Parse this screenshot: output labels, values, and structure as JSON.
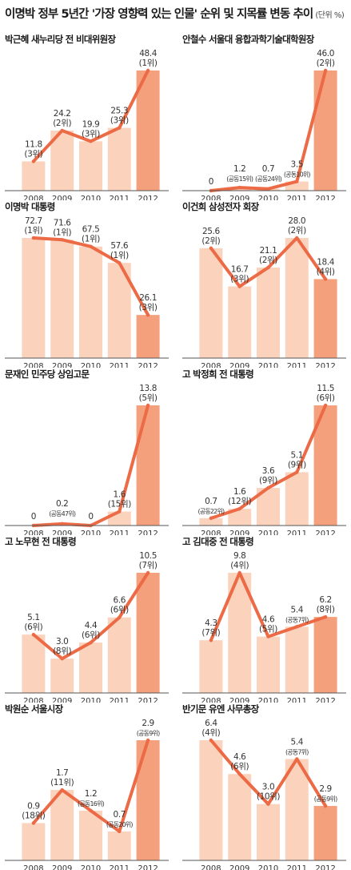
{
  "title": "이명박 정부 5년간 '가장 영향력 있는 인물' 순위 및 지목률 변동 추이",
  "unit": "(단위 %)",
  "colors": {
    "bar": "#fbd3bd",
    "bar_last": "#f4a07d",
    "line": "#ec6a45",
    "text": "#333333",
    "axis": "#555555"
  },
  "chart_data": [
    {
      "type": "bar",
      "title": "박근혜 새누리당 전 비대위원장",
      "categories": [
        "2008",
        "2009",
        "2010",
        "2011",
        "2012"
      ],
      "values": [
        11.8,
        24.2,
        19.9,
        25.3,
        48.4
      ],
      "labels": [
        "11.8",
        "24.2",
        "19.9",
        "25.3",
        "48.4"
      ],
      "ranks": [
        "(3위)",
        "(2위)",
        "(3위)",
        "(3위)",
        "(1위)"
      ]
    },
    {
      "type": "bar",
      "title": "안철수 서울대 융합과학기술대학원장",
      "categories": [
        "2008",
        "2009",
        "2010",
        "2011",
        "2012"
      ],
      "values": [
        0,
        1.2,
        0.7,
        3.5,
        46.0
      ],
      "labels": [
        "0",
        "1.2",
        "0.7",
        "3.5",
        "46.0"
      ],
      "ranks": [
        "",
        "(공동15위)",
        "(공동24위)",
        "(공동10위)",
        "(2위)"
      ]
    },
    {
      "type": "bar",
      "title": "이명박 대통령",
      "categories": [
        "2008",
        "2009",
        "2010",
        "2011",
        "2012"
      ],
      "values": [
        72.7,
        71.6,
        67.5,
        57.6,
        26.1
      ],
      "labels": [
        "72.7",
        "71.6",
        "67.5",
        "57.6",
        "26.1"
      ],
      "ranks": [
        "(1위)",
        "(1위)",
        "(1위)",
        "(1위)",
        "(3위)"
      ]
    },
    {
      "type": "bar",
      "title": "이건희 삼성전자 회장",
      "categories": [
        "2008",
        "2009",
        "2010",
        "2011",
        "2012"
      ],
      "values": [
        25.6,
        16.7,
        21.1,
        28.0,
        18.4
      ],
      "labels": [
        "25.6",
        "16.7",
        "21.1",
        "28.0",
        "18.4"
      ],
      "ranks": [
        "(2위)",
        "(3위)",
        "(2위)",
        "(2위)",
        "(4위)"
      ]
    },
    {
      "type": "bar",
      "title": "문재인 민주당 상임고문",
      "categories": [
        "2008",
        "2009",
        "2010",
        "2011",
        "2012"
      ],
      "values": [
        0,
        0.2,
        0,
        1.6,
        13.8
      ],
      "labels": [
        "0",
        "0.2",
        "0",
        "1.6",
        "13.8"
      ],
      "ranks": [
        "",
        "(공동47위)",
        "",
        "(15위)",
        "(5위)"
      ]
    },
    {
      "type": "bar",
      "title": "고 박정희 전 대통령",
      "categories": [
        "2008",
        "2009",
        "2010",
        "2011",
        "2012"
      ],
      "values": [
        0.7,
        1.6,
        3.6,
        5.1,
        11.5
      ],
      "labels": [
        "0.7",
        "1.6",
        "3.6",
        "5.1",
        "11.5"
      ],
      "ranks": [
        "(공동22위)",
        "(12위)",
        "(9위)",
        "(9위)",
        "(6위)"
      ]
    },
    {
      "type": "bar",
      "title": "고 노무현 전 대통령",
      "categories": [
        "2008",
        "2009",
        "2010",
        "2011",
        "2012"
      ],
      "values": [
        5.1,
        3.0,
        4.4,
        6.6,
        10.5
      ],
      "labels": [
        "5.1",
        "3.0",
        "4.4",
        "6.6",
        "10.5"
      ],
      "ranks": [
        "(6위)",
        "(8위)",
        "(6위)",
        "(6위)",
        "(7위)"
      ]
    },
    {
      "type": "bar",
      "title": "고 김대중 전 대통령",
      "categories": [
        "2008",
        "2009",
        "2010",
        "2011",
        "2012"
      ],
      "values": [
        4.3,
        9.8,
        4.6,
        5.4,
        6.2
      ],
      "labels": [
        "4.3",
        "9.8",
        "4.6",
        "5.4",
        "6.2"
      ],
      "ranks": [
        "(7위)",
        "(4위)",
        "(5위)",
        "(공동7위)",
        "(8위)"
      ]
    },
    {
      "type": "bar",
      "title": "박원순 서울시장",
      "categories": [
        "2008",
        "2009",
        "2010",
        "2011",
        "2012"
      ],
      "values": [
        0.9,
        1.7,
        1.2,
        0.7,
        2.9
      ],
      "labels": [
        "0.9",
        "1.7",
        "1.2",
        "0.7",
        "2.9"
      ],
      "ranks": [
        "(18위)",
        "(11위)",
        "(공동16위)",
        "(공동20위)",
        "(공동9위)"
      ]
    },
    {
      "type": "bar",
      "title": "반기문 유엔 사무총장",
      "categories": [
        "2008",
        "2009",
        "2010",
        "2011",
        "2012"
      ],
      "values": [
        6.4,
        4.6,
        3.0,
        5.4,
        2.9
      ],
      "labels": [
        "6.4",
        "4.6",
        "3.0",
        "5.4",
        "2.9"
      ],
      "ranks": [
        "(4위)",
        "(6위)",
        "(10위)",
        "(공동7위)",
        "(공동9위)"
      ]
    }
  ]
}
